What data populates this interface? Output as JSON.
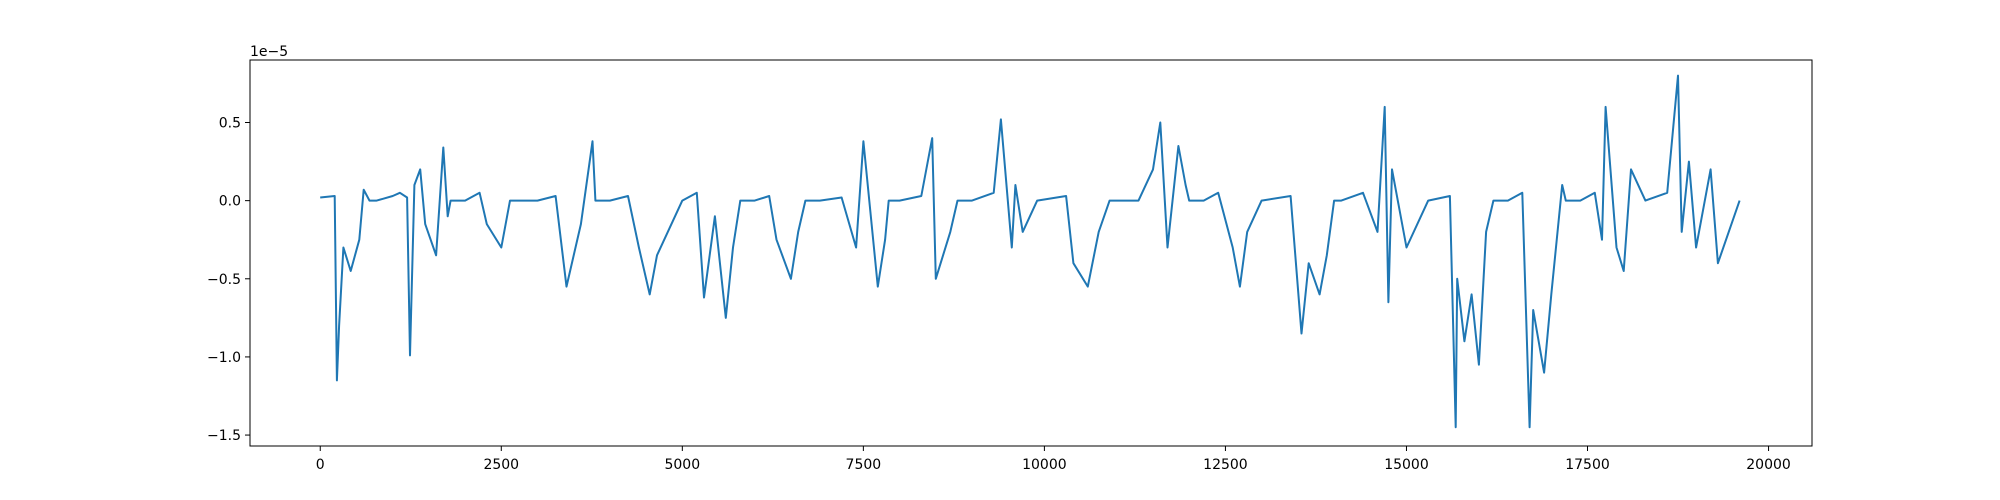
{
  "chart_data": {
    "type": "line",
    "title": "",
    "xlabel": "",
    "ylabel": "",
    "y_offset_text": "1e−5",
    "xlim": [
      -970,
      20600
    ],
    "ylim": [
      -1.57,
      0.9
    ],
    "x_ticks": [
      {
        "value": 0,
        "label": "0"
      },
      {
        "value": 2500,
        "label": "2500"
      },
      {
        "value": 5000,
        "label": "5000"
      },
      {
        "value": 7500,
        "label": "7500"
      },
      {
        "value": 10000,
        "label": "10000"
      },
      {
        "value": 12500,
        "label": "12500"
      },
      {
        "value": 15000,
        "label": "15000"
      },
      {
        "value": 17500,
        "label": "17500"
      },
      {
        "value": 20000,
        "label": "20000"
      }
    ],
    "y_ticks": [
      {
        "value": 0.5,
        "label": "0.5"
      },
      {
        "value": 0.0,
        "label": "0.0"
      },
      {
        "value": -0.5,
        "label": "−0.5"
      },
      {
        "value": -1.0,
        "label": "−1.0"
      },
      {
        "value": -1.5,
        "label": "−1.5"
      }
    ],
    "grid": false,
    "series": [
      {
        "color": "#1f77b4",
        "x": [
          0,
          200,
          230,
          260,
          320,
          420,
          540,
          600,
          680,
          780,
          1000,
          1100,
          1200,
          1240,
          1300,
          1380,
          1450,
          1600,
          1700,
          1760,
          1800,
          2000,
          2200,
          2300,
          2500,
          2620,
          2800,
          3000,
          3250,
          3400,
          3600,
          3760,
          3800,
          4000,
          4250,
          4400,
          4550,
          4650,
          4800,
          5000,
          5200,
          5300,
          5450,
          5600,
          5700,
          5800,
          6000,
          6200,
          6300,
          6500,
          6600,
          6700,
          6900,
          7200,
          7400,
          7500,
          7700,
          7800,
          7850,
          8000,
          8300,
          8450,
          8500,
          8700,
          8800,
          9000,
          9300,
          9400,
          9550,
          9600,
          9700,
          9900,
          10300,
          10400,
          10600,
          10750,
          10900,
          11300,
          11500,
          11600,
          11700,
          11850,
          11950,
          12000,
          12200,
          12400,
          12600,
          12700,
          12800,
          13000,
          13400,
          13550,
          13650,
          13800,
          13900,
          14000,
          14100,
          14400,
          14600,
          14700,
          14750,
          14800,
          15000,
          15300,
          15600,
          15680,
          15700,
          15800,
          15900,
          16000,
          16100,
          16200,
          16400,
          16600,
          16700,
          16750,
          16900,
          17000,
          17150,
          17200,
          17400,
          17600,
          17700,
          17750,
          17900,
          18000,
          18100,
          18300,
          18600,
          18750,
          18800,
          18900,
          19000,
          19200,
          19300,
          19600
        ],
        "y": [
          0.02,
          0.03,
          -1.15,
          -0.8,
          -0.3,
          -0.45,
          -0.25,
          0.07,
          0.0,
          0.0,
          0.03,
          0.05,
          0.02,
          -0.99,
          0.1,
          0.2,
          -0.15,
          -0.35,
          0.34,
          -0.1,
          0.0,
          0.0,
          0.05,
          -0.15,
          -0.3,
          0.0,
          0.0,
          0.0,
          0.03,
          -0.55,
          -0.15,
          0.38,
          0.0,
          0.0,
          0.03,
          -0.3,
          -0.6,
          -0.35,
          -0.2,
          0.0,
          0.05,
          -0.62,
          -0.1,
          -0.75,
          -0.3,
          0.0,
          0.0,
          0.03,
          -0.25,
          -0.5,
          -0.2,
          0.0,
          0.0,
          0.02,
          -0.3,
          0.38,
          -0.55,
          -0.25,
          0.0,
          0.0,
          0.03,
          0.4,
          -0.5,
          -0.2,
          0.0,
          0.0,
          0.05,
          0.52,
          -0.3,
          0.1,
          -0.2,
          0.0,
          0.03,
          -0.4,
          -0.55,
          -0.2,
          0.0,
          0.0,
          0.2,
          0.5,
          -0.3,
          0.35,
          0.1,
          0.0,
          0.0,
          0.05,
          -0.3,
          -0.55,
          -0.2,
          0.0,
          0.03,
          -0.85,
          -0.4,
          -0.6,
          -0.35,
          0.0,
          0.0,
          0.05,
          -0.2,
          0.6,
          -0.65,
          0.2,
          -0.3,
          0.0,
          0.03,
          -1.45,
          -0.5,
          -0.9,
          -0.6,
          -1.05,
          -0.2,
          0.0,
          0.0,
          0.05,
          -1.45,
          -0.7,
          -1.1,
          -0.6,
          0.1,
          0.0,
          0.0,
          0.05,
          -0.25,
          0.6,
          -0.3,
          -0.45,
          0.2,
          0.0,
          0.05,
          0.8,
          -0.2,
          0.25,
          -0.3,
          0.2,
          -0.4,
          0.0
        ]
      }
    ]
  }
}
